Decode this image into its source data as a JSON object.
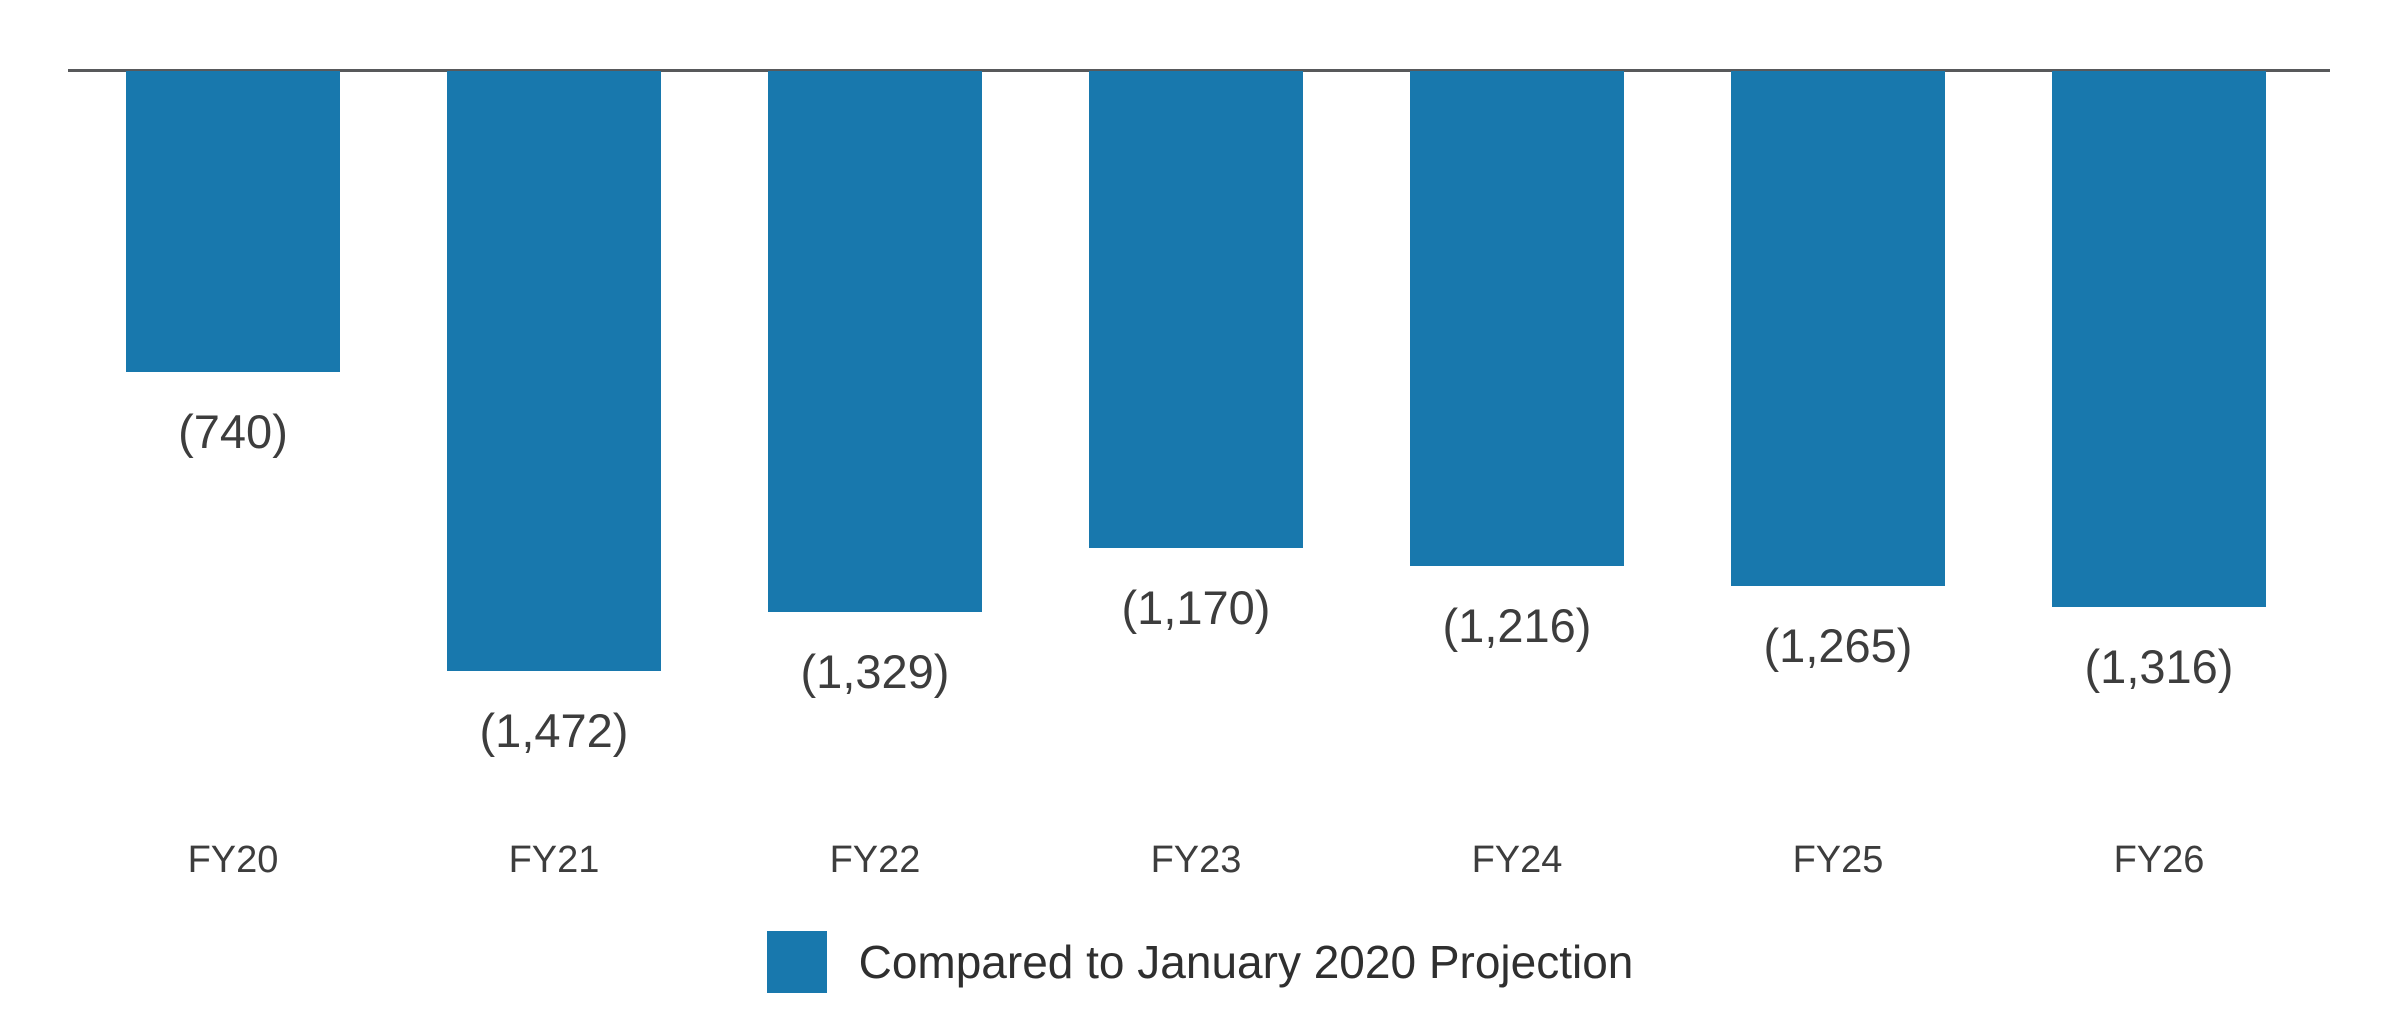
{
  "chart_data": {
    "type": "bar",
    "title": "",
    "xlabel": "",
    "ylabel": "",
    "categories": [
      "FY20",
      "FY21",
      "FY22",
      "FY23",
      "FY24",
      "FY25",
      "FY26"
    ],
    "values": [
      -740,
      -1472,
      -1329,
      -1170,
      -1216,
      -1265,
      -1316
    ],
    "value_labels": [
      "(740)",
      "(1,472)",
      "(1,329)",
      "(1,170)",
      "(1,216)",
      "(1,265)",
      "(1,316)"
    ],
    "series": [
      {
        "name": "Compared to January 2020 Projection",
        "values": [
          -740,
          -1472,
          -1329,
          -1170,
          -1216,
          -1265,
          -1316
        ]
      }
    ],
    "legend": "Compared to January 2020 Projection",
    "legend_position": "bottom-center",
    "baseline_value": 0,
    "grid": false,
    "bar_color": "#1878ad",
    "axis_line_color": "#58595b",
    "label_color": "#3d3d3d",
    "background_color": "#ffffff"
  }
}
